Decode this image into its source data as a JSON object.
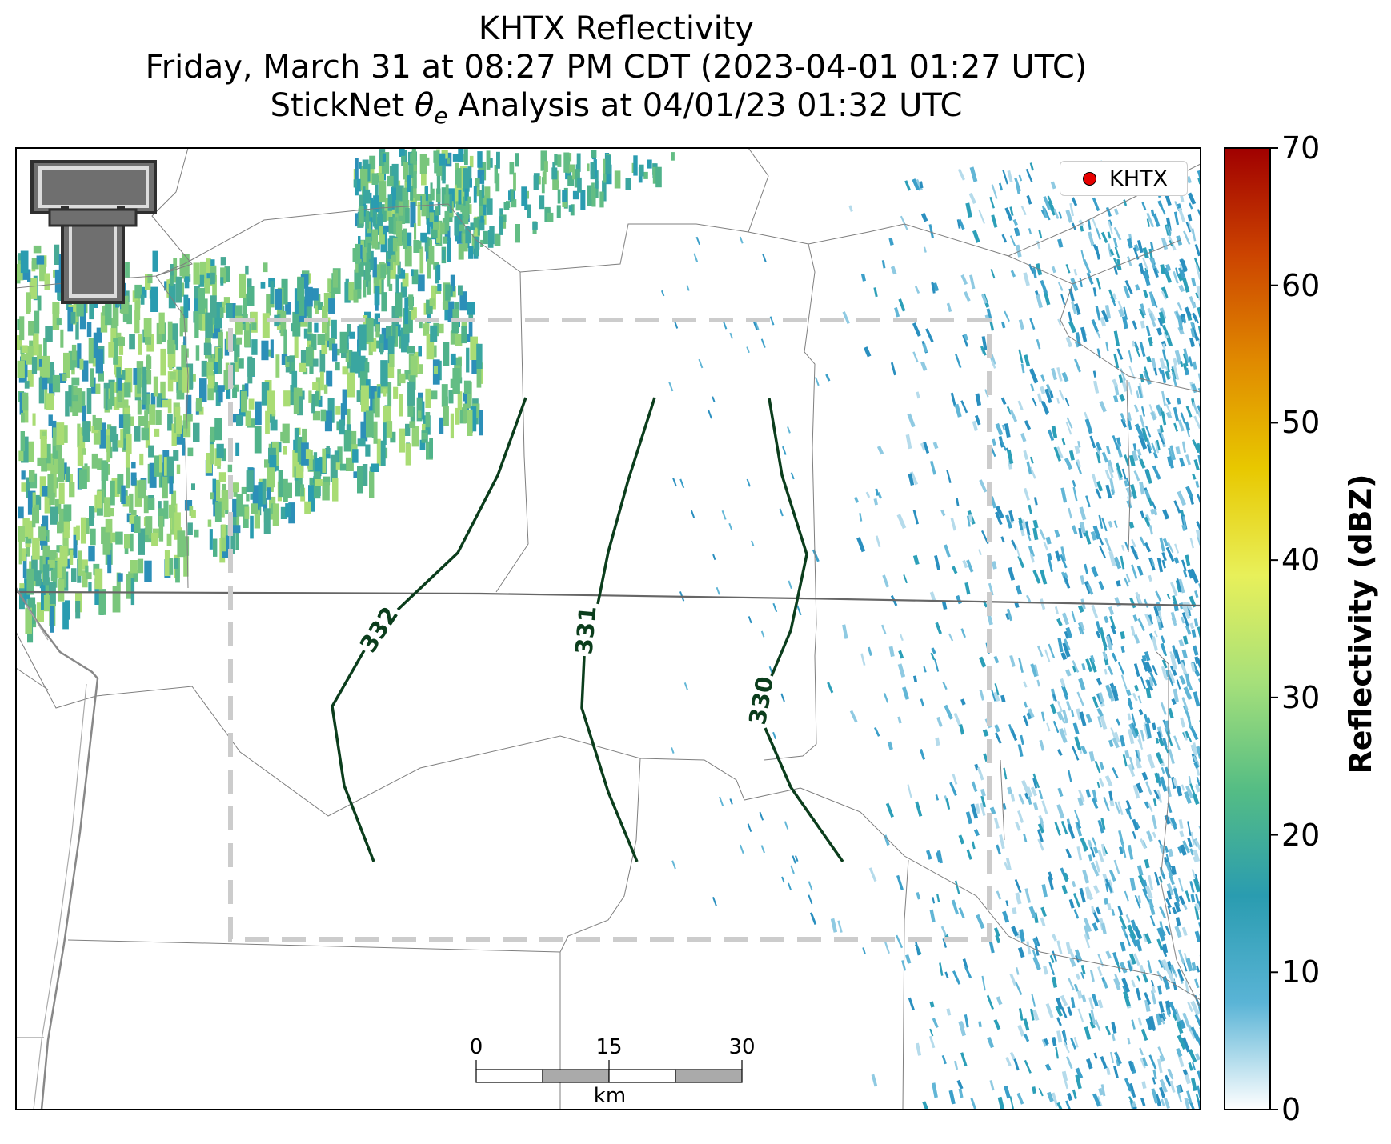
{
  "title": {
    "line1": "KHTX Reflectivity",
    "line2": "Friday, March 31 at 08:27 PM CDT (2023-04-01 01:27 UTC)",
    "line3_prefix": "StickNet ",
    "line3_symbol": "θ",
    "line3_subscript": "e",
    "line3_suffix": " Analysis at 04/01/23 01:32 UTC"
  },
  "legend": {
    "label": "KHTX",
    "marker_color": "#e60000"
  },
  "colorbar": {
    "label": "Reflectivity (dBZ)",
    "ticks": [
      "0",
      "10",
      "20",
      "30",
      "40",
      "50",
      "60",
      "70"
    ],
    "min": 0,
    "max": 70,
    "colors": [
      "#ffffff",
      "#5ab4d6",
      "#2a9cb0",
      "#55bd84",
      "#a6e07a",
      "#e8f05a",
      "#e8c800",
      "#e08a00",
      "#cc4400",
      "#a00000"
    ]
  },
  "contours": {
    "color": "#0b3d1c",
    "levels": [
      "332",
      "331",
      "330"
    ],
    "variable": "theta-e"
  },
  "scale_bar": {
    "ticks": [
      "0",
      "15",
      "30"
    ],
    "unit": "km"
  },
  "analysis_box": {
    "style": "dashed",
    "color": "#cccccc"
  },
  "logo": {
    "text": "T",
    "name": "Texas Tech double-T logo"
  }
}
